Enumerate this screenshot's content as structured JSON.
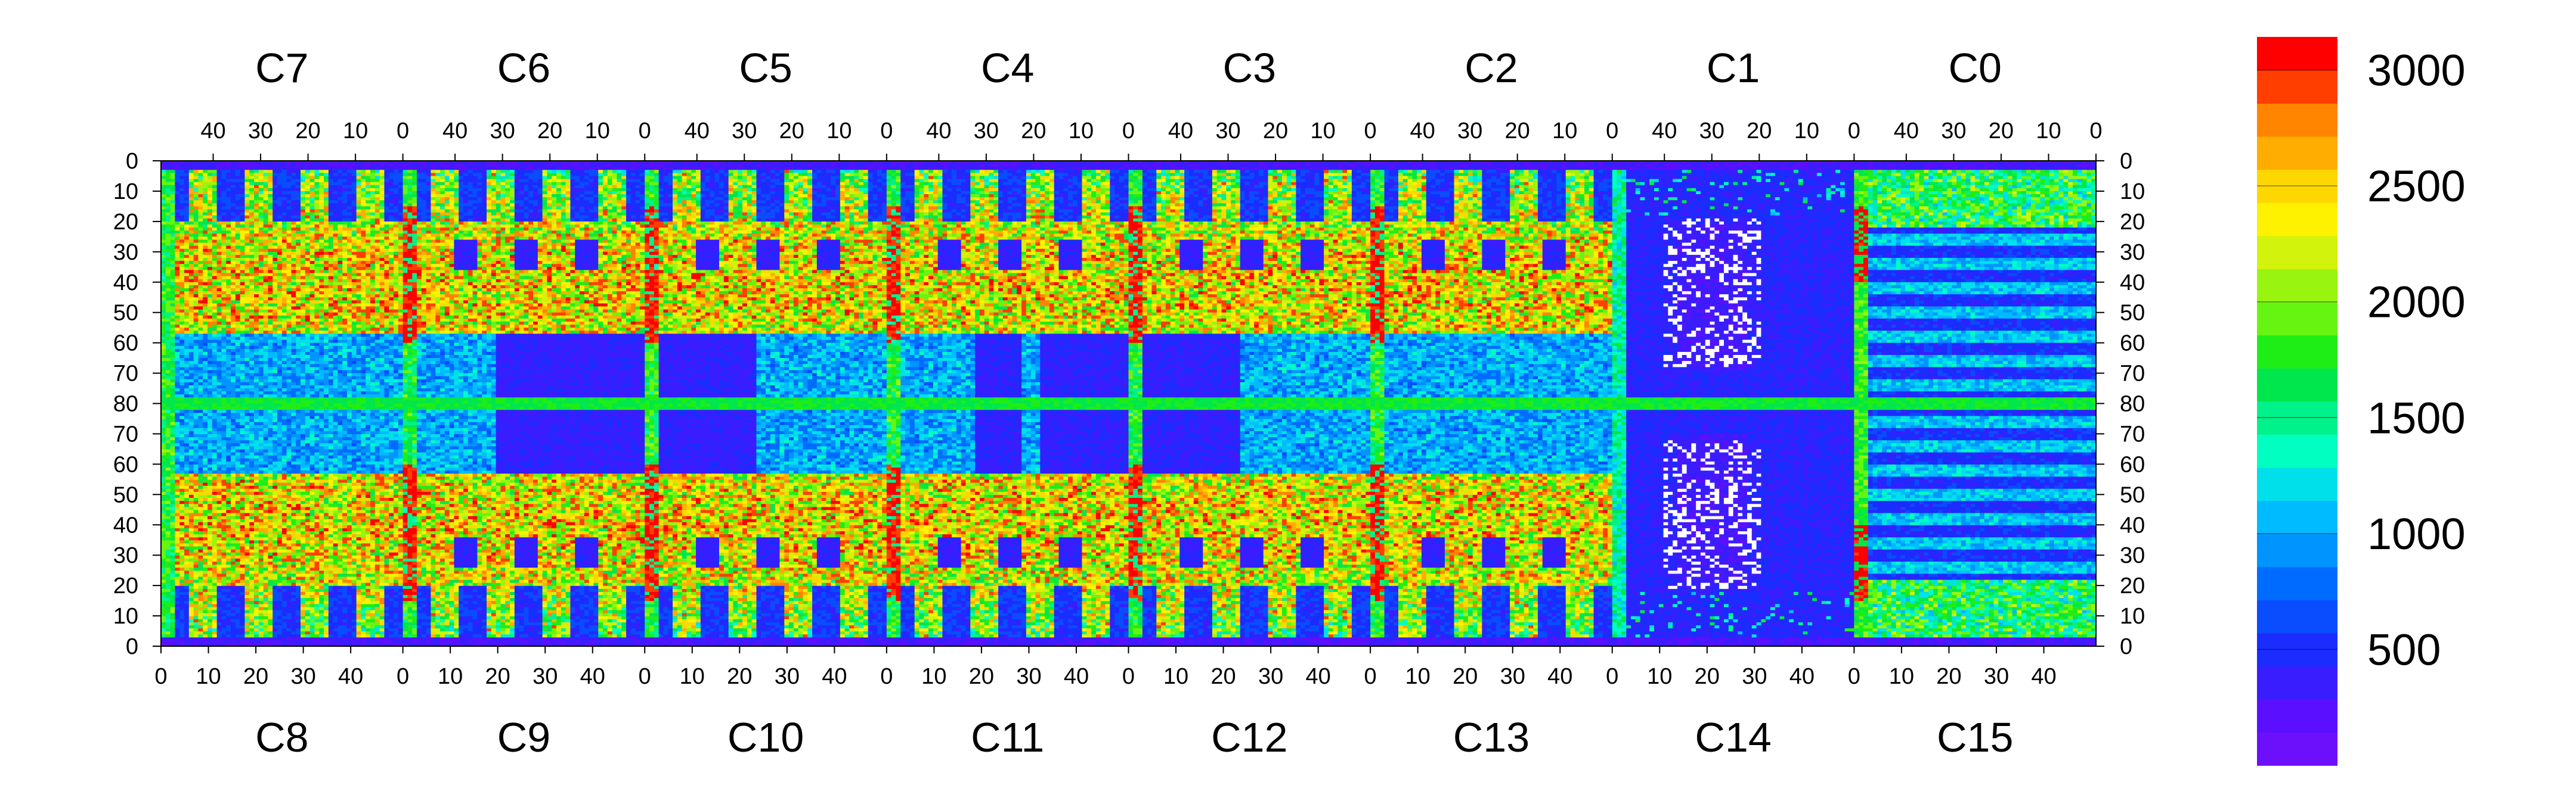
{
  "chart_data": {
    "type": "heatmap",
    "top_chip_labels": [
      "C7",
      "C6",
      "C5",
      "C4",
      "C3",
      "C2",
      "C1",
      "C0"
    ],
    "bottom_chip_labels": [
      "C8",
      "C9",
      "C10",
      "C11",
      "C12",
      "C13",
      "C14",
      "C15"
    ],
    "top_tick_labels": [
      "40",
      "30",
      "20",
      "10",
      "0"
    ],
    "bottom_tick_labels": [
      "0",
      "10",
      "20",
      "30",
      "40"
    ],
    "y_tick_labels": [
      "0",
      "10",
      "20",
      "30",
      "40",
      "50",
      "60",
      "70",
      "80",
      "70",
      "60",
      "50",
      "40",
      "30",
      "20",
      "10",
      "0"
    ],
    "columns_per_chip": 52,
    "rows_per_half": 80,
    "zrange": [
      0,
      3000
    ],
    "colorbar_labels": [
      "3000",
      "2500",
      "2000",
      "1500",
      "1000",
      "500"
    ],
    "colorbar_values": [
      3000,
      2500,
      2000,
      1500,
      1000,
      500
    ],
    "colorbar_levels": 20,
    "palette": [
      "#6c0ffa",
      "#5a10ff",
      "#3a1dff",
      "#1b2cff",
      "#0a4cff",
      "#006cff",
      "#0094ff",
      "#00bbff",
      "#00e0ea",
      "#00ffc0",
      "#00f28a",
      "#00e64d",
      "#1fee16",
      "#66f511",
      "#99f50f",
      "#d2f30c",
      "#fff200",
      "#ffd700",
      "#ffad00",
      "#ff8400",
      "#ff3e00",
      "#ff0000"
    ],
    "special_colors": {
      "empty": "#ffffff",
      "ridge": "#ff1e00"
    }
  }
}
